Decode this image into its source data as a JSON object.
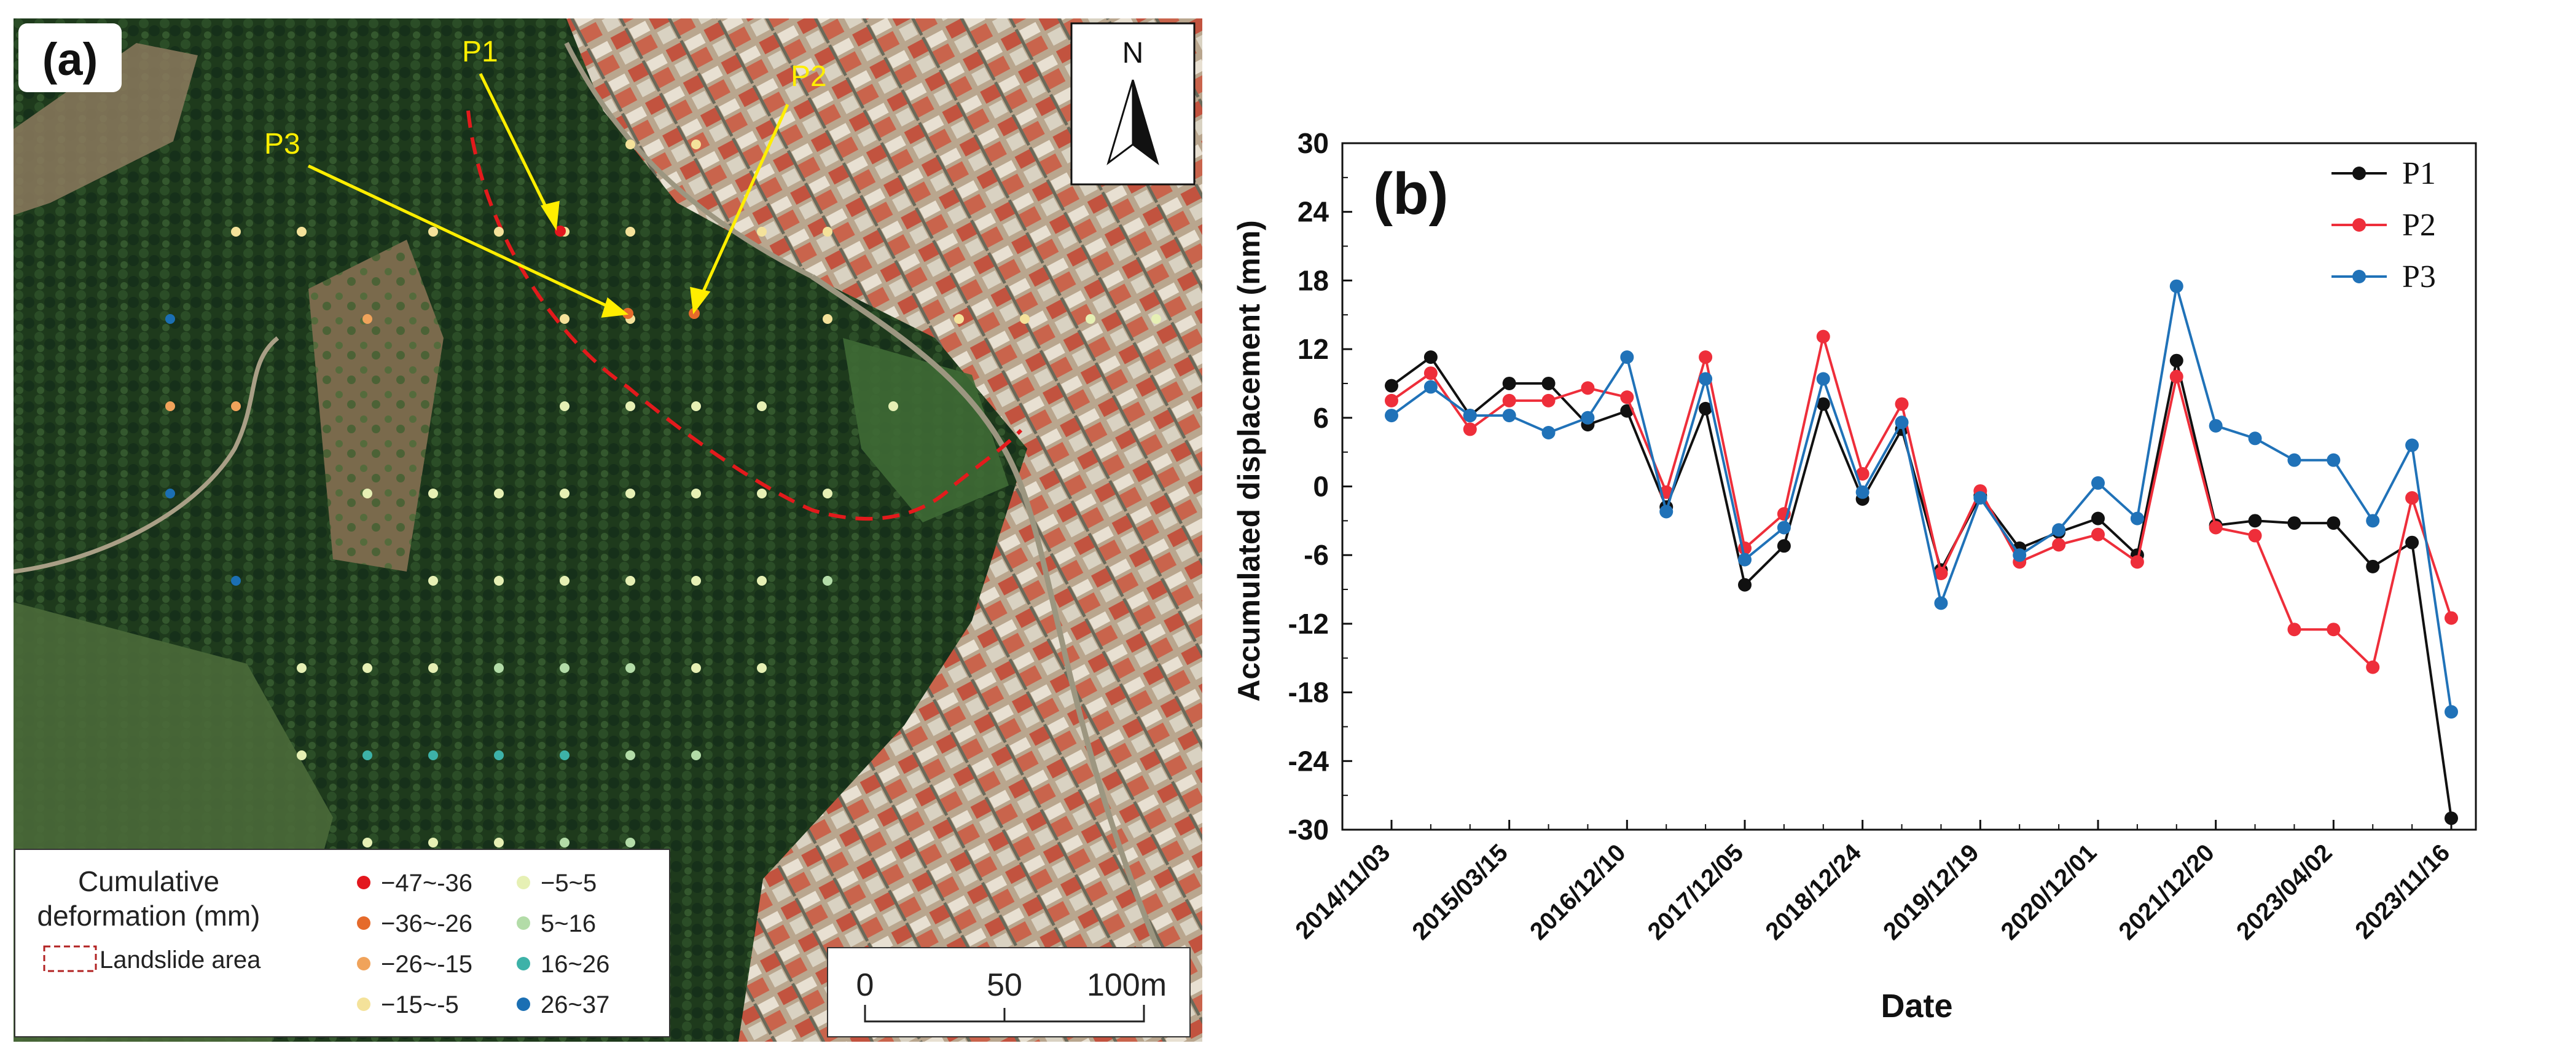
{
  "panel_a": {
    "label": "(a)",
    "north": "N",
    "points": [
      {
        "name": "P1"
      },
      {
        "name": "P2"
      },
      {
        "name": "P3"
      }
    ],
    "legend": {
      "title_line1": "Cumulative",
      "title_line2": "deformation (mm)",
      "landslide_label": "Landslide area",
      "classes": [
        {
          "label": "−47~-36",
          "color": "#e3171e"
        },
        {
          "label": "−36~-26",
          "color": "#e56a2b"
        },
        {
          "label": "−26~-15",
          "color": "#f0a35b"
        },
        {
          "label": "−15~-5",
          "color": "#f4e29a"
        },
        {
          "label": "−5~5",
          "color": "#e6f0b4"
        },
        {
          "label": "5~16",
          "color": "#b3dca8"
        },
        {
          "label": "16~26",
          "color": "#3db2a8"
        },
        {
          "label": "26~37",
          "color": "#1b6fb3"
        }
      ]
    },
    "scale": {
      "ticks": [
        "0",
        "50",
        "100m"
      ]
    },
    "colors": {
      "arrow": "#ffee00",
      "point_label": "#ffee00",
      "landslide_line": "#e31a1c"
    }
  },
  "chart_data": {
    "type": "line",
    "panel_label": "(b)",
    "xlabel": "Date",
    "ylabel": "Accumulated displacement (mm)",
    "ylim": [
      -30,
      30
    ],
    "yticks": [
      30,
      24,
      18,
      12,
      6,
      0,
      -6,
      -12,
      -18,
      -24,
      -30
    ],
    "xtick_labels": [
      "2014/11/03",
      "2015/03/15",
      "2016/12/10",
      "2017/12/05",
      "2018/12/24",
      "2019/12/19",
      "2020/12/01",
      "2021/12/20",
      "2023/04/02",
      "2023/11/16"
    ],
    "legend_position": "top-right",
    "series": [
      {
        "name": "P1",
        "color": "#111111",
        "values": [
          8.8,
          11.3,
          6.2,
          9.0,
          9.0,
          5.4,
          6.6,
          -1.8,
          6.8,
          -8.6,
          -5.2,
          7.2,
          -1.1,
          5.0,
          -7.3,
          -0.8,
          -5.4,
          -4.0,
          -2.8,
          -6.0,
          11.0,
          -3.4,
          -3.0,
          -3.2,
          -3.2,
          -7.0,
          -4.9,
          -29.0
        ]
      },
      {
        "name": "P2",
        "color": "#ee2e3a",
        "values": [
          7.5,
          9.9,
          5.0,
          7.5,
          7.5,
          8.6,
          7.8,
          -0.5,
          11.3,
          -5.4,
          -2.4,
          13.1,
          1.1,
          7.2,
          -7.6,
          -0.4,
          -6.6,
          -5.1,
          -4.2,
          -6.6,
          9.6,
          -3.6,
          -4.3,
          -12.5,
          -12.5,
          -15.8,
          -1.0,
          -11.5
        ]
      },
      {
        "name": "P3",
        "color": "#2072b8",
        "values": [
          6.2,
          8.7,
          6.2,
          6.2,
          4.7,
          6.0,
          11.3,
          -2.2,
          9.4,
          -6.4,
          -3.6,
          9.4,
          -0.5,
          5.6,
          -10.2,
          -1.0,
          -6.0,
          -3.8,
          0.3,
          -2.8,
          17.5,
          5.3,
          4.2,
          2.3,
          2.3,
          -3.0,
          3.6,
          -19.7
        ]
      }
    ]
  }
}
